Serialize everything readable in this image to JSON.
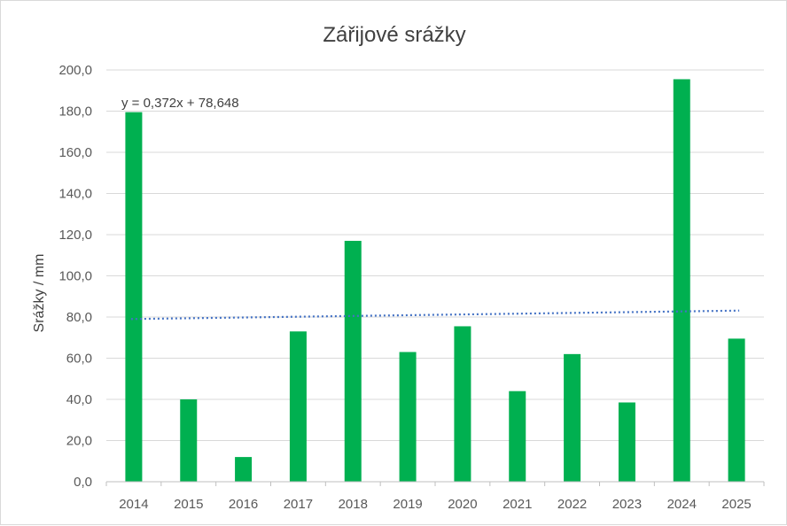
{
  "chart_data": {
    "type": "bar",
    "title": "Zářijové srážky",
    "xlabel": "",
    "ylabel": "Srážky / mm",
    "categories": [
      "2014",
      "2015",
      "2016",
      "2017",
      "2018",
      "2019",
      "2020",
      "2021",
      "2022",
      "2023",
      "2024",
      "2025"
    ],
    "values": [
      179.5,
      40.0,
      12.0,
      73.0,
      117.0,
      63.0,
      75.5,
      44.0,
      62.0,
      38.5,
      195.5,
      69.5
    ],
    "ylim": [
      0,
      200
    ],
    "yticks": [
      "0,0",
      "20,0",
      "40,0",
      "60,0",
      "80,0",
      "100,0",
      "120,0",
      "140,0",
      "160,0",
      "180,0",
      "200,0"
    ],
    "grid": true,
    "bar_color": "#00b050",
    "trendline": {
      "type": "linear",
      "equation": "y = 0,372x + 78,648",
      "slope": 0.372,
      "intercept": 78.648,
      "color": "#4472c4",
      "style": "dotted"
    }
  }
}
